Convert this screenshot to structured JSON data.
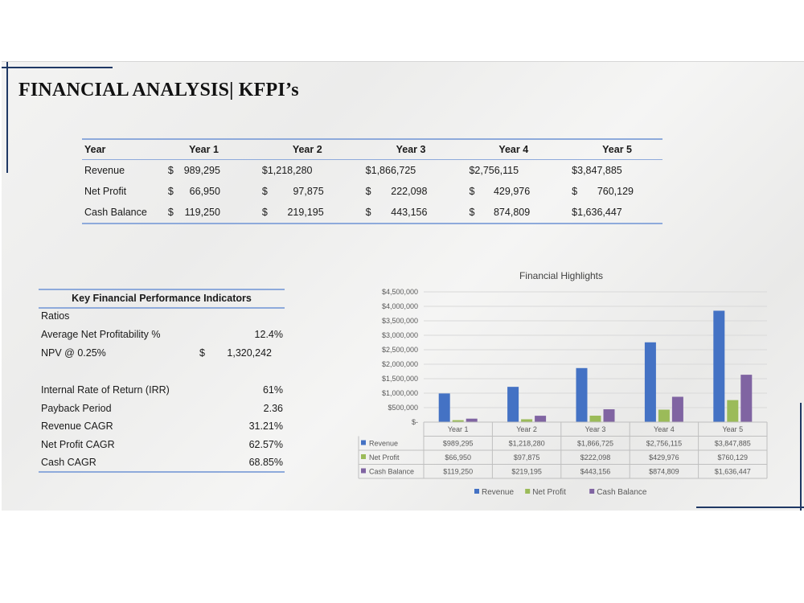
{
  "title": "FINANCIAL ANALYSIS| KFPI’s",
  "table": {
    "headers": [
      "Year",
      "Year 1",
      "Year 2",
      "Year 3",
      "Year 4",
      "Year 5"
    ],
    "rows": [
      {
        "label": "Revenue",
        "cells": [
          [
            "$",
            "989,295"
          ],
          [
            "",
            "$1,218,280"
          ],
          [
            "",
            "$1,866,725"
          ],
          [
            "",
            "$2,756,115"
          ],
          [
            "",
            "$3,847,885"
          ]
        ]
      },
      {
        "label": "Net Profit",
        "cells": [
          [
            "$",
            "66,950"
          ],
          [
            "$",
            "97,875"
          ],
          [
            "$",
            "222,098"
          ],
          [
            "$",
            "429,976"
          ],
          [
            "$",
            "760,129"
          ]
        ]
      },
      {
        "label": "Cash Balance",
        "cells": [
          [
            "$",
            "119,250"
          ],
          [
            "$",
            "219,195"
          ],
          [
            "$",
            "443,156"
          ],
          [
            "$",
            "874,809"
          ],
          [
            "",
            "$1,636,447"
          ]
        ]
      }
    ]
  },
  "kpi": {
    "header": "Key Financial Performance Indicators",
    "ratios_label": "Ratios",
    "avg_net_profitability": {
      "label": "Average Net Profitability %",
      "value": "12.4%"
    },
    "npv": {
      "label": "NPV @ 0.25%",
      "currency": "$",
      "value": "1,320,242"
    },
    "irr": {
      "label": "Internal Rate of Return (IRR)",
      "value": "61%"
    },
    "payback": {
      "label": "Payback Period",
      "value": "2.36"
    },
    "revenue_cagr": {
      "label": "Revenue CAGR",
      "value": "31.21%"
    },
    "net_profit_cagr": {
      "label": "Net Profit CAGR",
      "value": "62.57%"
    },
    "cash_cagr": {
      "label": "Cash CAGR",
      "value": "68.85%"
    }
  },
  "chart_data": {
    "type": "bar",
    "title": "Financial Highlights",
    "categories": [
      "Year 1",
      "Year 2",
      "Year 3",
      "Year 4",
      "Year 5"
    ],
    "ylim": [
      0,
      4500000
    ],
    "y_ticks": [
      "$-",
      "$500,000",
      "$1,000,000",
      "$1,500,000",
      "$2,000,000",
      "$2,500,000",
      "$3,000,000",
      "$3,500,000",
      "$4,000,000",
      "$4,500,000"
    ],
    "series": [
      {
        "name": "Revenue",
        "color": "#4472c4",
        "values": [
          989295,
          1218280,
          1866725,
          2756115,
          3847885
        ],
        "labels": [
          "$989,295",
          "$1,218,280",
          "$1,866,725",
          "$2,756,115",
          "$3,847,885"
        ]
      },
      {
        "name": "Net Profit",
        "color": "#9bbb59",
        "values": [
          66950,
          97875,
          222098,
          429976,
          760129
        ],
        "labels": [
          "$66,950",
          "$97,875",
          "$222,098",
          "$429,976",
          "$760,129"
        ]
      },
      {
        "name": "Cash Balance",
        "color": "#8064a2",
        "values": [
          119250,
          219195,
          443156,
          874809,
          1636447
        ],
        "labels": [
          "$119,250",
          "$219,195",
          "$443,156",
          "$874,809",
          "$1,636,447"
        ]
      }
    ],
    "legend": "bottom",
    "grid": true
  },
  "colors": {
    "accent_line": "#8eaadb",
    "deco": "#1f3864"
  }
}
